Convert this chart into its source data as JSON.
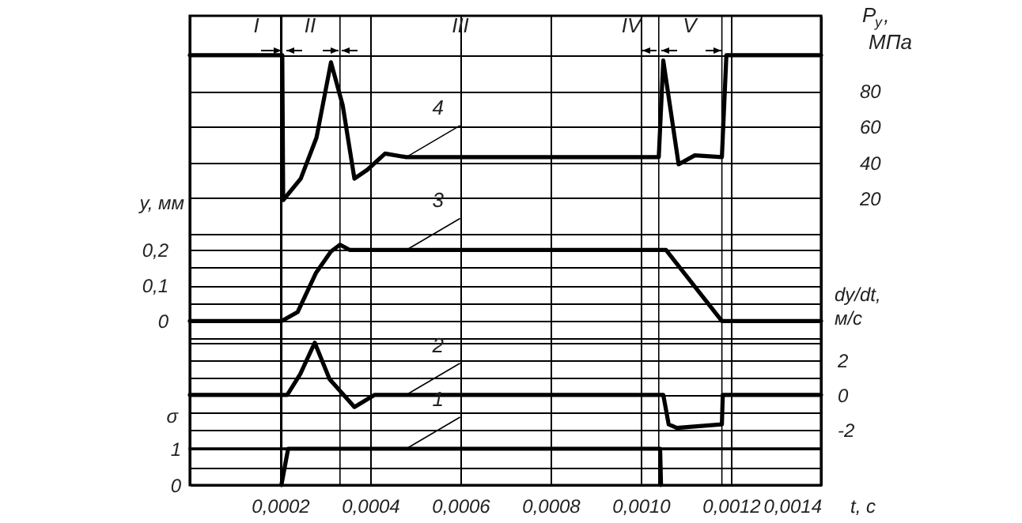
{
  "chart_data": [
    {
      "type": "line",
      "ylabel": "y, мм",
      "y2label": "P$_{y}$, МПа",
      "y3label": "dy/dt, м/с",
      "xlim": [
        0,
        0.0014
      ],
      "xticks": [
        0,
        0.0002,
        0.0004,
        0.0006,
        0.0008,
        0.001,
        0.0012,
        0.0014
      ],
      "ylim": [
        -0.36,
        0.86
      ],
      "yticks": [
        {
          "value": 0.2,
          "label": "0,2"
        },
        {
          "value": 0.15,
          "label": null
        },
        {
          "value": 0.1,
          "label": "0,1"
        },
        {
          "value": 0.05,
          "label": null
        },
        {
          "value": 0,
          "label": "0"
        },
        {
          "value": -0.05,
          "label": null
        }
      ],
      "y2lim": [
        -120,
        122
      ],
      "y2ticks": [
        {
          "value": 100,
          "label": null
        },
        80,
        60,
        40,
        20,
        {
          "value": 0,
          "label": null
        }
      ],
      "y3lim": [
        -3.1,
        21.8
      ],
      "y3ticks": [
        {
          "value": 3,
          "label": null
        },
        2,
        {
          "value": 1,
          "label": null
        },
        0,
        {
          "value": -1,
          "label": null
        },
        -2
      ],
      "tick_labels": "y",
      "grid": true,
      "series": [
        {
          "name": "4",
          "axis": "y2",
          "color": "#000000",
          "x": [
            0,
            0.000205,
            0.000207,
            0.000246,
            0.000281,
            0.000313,
            0.000339,
            0.000365,
            0.000394,
            0.000433,
            0.00048,
            0.00104,
            0.00105,
            0.001084,
            0.00112,
            0.00118,
            0.00119,
            0.0014
          ],
          "values": [
            100,
            100,
            19,
            31,
            54,
            96,
            72,
            31,
            36,
            45,
            43,
            43,
            97,
            39,
            44,
            43,
            100,
            100
          ]
        },
        {
          "name": "3",
          "color": "#000000",
          "x": [
            0,
            0.000204,
            0.000218,
            0.000239,
            0.00028,
            0.000313,
            0.000333,
            0.000355,
            0.00048,
            0.001056,
            0.00118,
            0.0014
          ],
          "values": [
            0,
            0,
            0.01,
            0.025,
            0.136,
            0.196,
            0.215,
            0.2,
            0.2,
            0.2,
            0,
            0
          ]
        },
        {
          "name": "2",
          "axis": "y3",
          "color": "#000000",
          "x": [
            0,
            0.000216,
            0.000245,
            0.000277,
            0.00031,
            0.000365,
            0.00041,
            0.00048,
            0.00105,
            0.001062,
            0.00108,
            0.00118,
            0.001182,
            0.0014
          ],
          "values": [
            0,
            0,
            1.2,
            3.0,
            0.9,
            -0.7,
            0,
            0,
            0,
            -1.7,
            -1.9,
            -1.7,
            0,
            0
          ]
        }
      ],
      "ref_lines": [
        {
          "axis": "x",
          "value": 0.000204
        },
        {
          "axis": "x",
          "value": 0.000333
        },
        {
          "axis": "x",
          "value": 0.00104
        },
        {
          "axis": "x",
          "value": 0.00118
        }
      ],
      "annotations": [
        "I",
        "II",
        "III",
        "IV",
        "V"
      ]
    },
    {
      "type": "line",
      "xlabel": "t, с",
      "ylabel": "σ",
      "xlim": [
        0,
        0.0014
      ],
      "xticks": [
        {
          "value": 0,
          "label": null
        },
        {
          "value": 0.0002,
          "label": "0,0002"
        },
        {
          "value": 0.0004,
          "label": "0,0004"
        },
        {
          "value": 0.0006,
          "label": "0,0006"
        },
        {
          "value": 0.0008,
          "label": "0,0008"
        },
        {
          "value": 0.001,
          "label": "0,0010"
        },
        {
          "value": 0.0012,
          "label": "0,0012"
        },
        {
          "value": 0.0014,
          "label": "0,0014"
        }
      ],
      "ylim": [
        0,
        1
      ],
      "yticks": [
        1,
        {
          "value": 0.5,
          "label": null
        },
        0
      ],
      "grid": true,
      "series": [
        {
          "name": "1",
          "color": "#000000",
          "x": [
            0.000203,
            0.000218,
            0.00048,
            0.001043,
            0.001045
          ],
          "values": [
            0,
            1,
            1,
            1,
            0
          ]
        }
      ],
      "ref_lines": [
        {
          "axis": "x",
          "value": 0.000204
        },
        {
          "axis": "x",
          "value": 0.000333
        },
        {
          "axis": "x",
          "value": 0.00104
        },
        {
          "axis": "x",
          "value": 0.00118
        }
      ]
    }
  ]
}
